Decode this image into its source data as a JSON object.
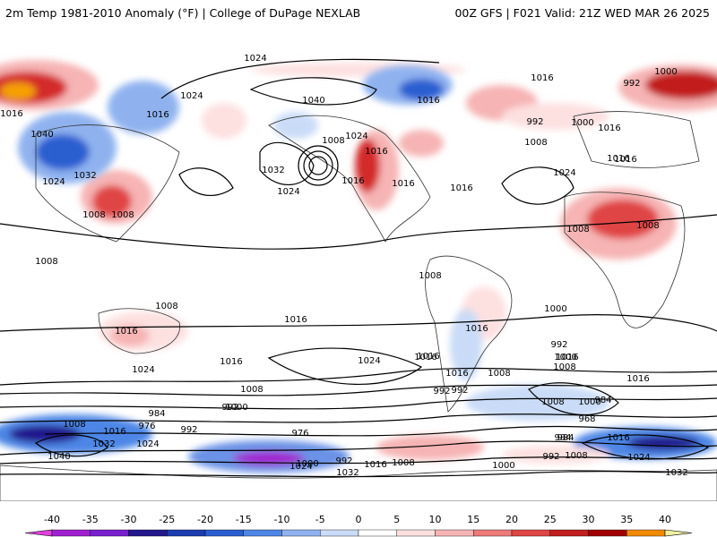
{
  "header": {
    "left_title": "2m Temp 1981-2010 Anomaly (°F) | College of DuPage NEXLAB",
    "right_title": "00Z GFS | F021 Valid: 21Z WED MAR 26 2025"
  },
  "colors": {
    "warm_light": "#f6c6c6",
    "warm_mid": "#ee7a7a",
    "warm_strong": "#d42a2a",
    "warm_extreme": "#b00000",
    "hot": "#f5a000",
    "cold_light": "#c6d8f6",
    "cold_mid": "#6b92e6",
    "cold_strong": "#2a4fc8",
    "cold_extreme": "#7a1fd0",
    "isobar": "#000000"
  },
  "map": {
    "type": "global temperature anomaly with sea-level pressure isobars",
    "pressure_labels": [
      {
        "text": "1024",
        "region": "North Pacific top"
      },
      {
        "text": "1040",
        "region": "North Pacific"
      },
      {
        "text": "1032",
        "region": "North Pacific"
      },
      {
        "text": "1024",
        "region": "North Pacific"
      },
      {
        "text": "1008",
        "region": "Gulf of Alaska low"
      },
      {
        "text": "1016",
        "region": "Gulf of Alaska"
      },
      {
        "text": "1016",
        "region": "Western US"
      },
      {
        "text": "1016",
        "region": "Central US"
      },
      {
        "text": "1016",
        "region": "Eastern US"
      },
      {
        "text": "1016",
        "region": "Canada"
      },
      {
        "text": "1024",
        "region": "Canada"
      },
      {
        "text": "1016",
        "region": "Arctic"
      },
      {
        "text": "1000",
        "region": "Arctic Europe"
      },
      {
        "text": "992",
        "region": "Arctic Europe"
      },
      {
        "text": "992",
        "region": "North Atlantic"
      },
      {
        "text": "1000",
        "region": "North Atlantic"
      },
      {
        "text": "1008",
        "region": "North Atlantic"
      },
      {
        "text": "1016",
        "region": "North Atlantic"
      },
      {
        "text": "1024",
        "region": "Azores"
      },
      {
        "text": "1016",
        "region": "Europe"
      },
      {
        "text": "1016",
        "region": "Middle East"
      },
      {
        "text": "1008",
        "region": "North Africa"
      },
      {
        "text": "1008",
        "region": "Middle East"
      },
      {
        "text": "1016",
        "region": "Siberia"
      },
      {
        "text": "1024",
        "region": "Siberia"
      },
      {
        "text": "1040",
        "region": "Central Asia"
      },
      {
        "text": "1032",
        "region": "East Asia"
      },
      {
        "text": "1024",
        "region": "East Asia"
      },
      {
        "text": "1008",
        "region": "East Asia"
      },
      {
        "text": "1008",
        "region": "China"
      },
      {
        "text": "1016",
        "region": "Central Asia"
      },
      {
        "text": "1008",
        "region": "India"
      },
      {
        "text": "1008",
        "region": "Indonesia"
      },
      {
        "text": "1016",
        "region": "Australia"
      },
      {
        "text": "1016",
        "region": "South Pacific"
      },
      {
        "text": "1024",
        "region": "South Indian Ocean"
      },
      {
        "text": "1016",
        "region": "South Pacific"
      },
      {
        "text": "1024",
        "region": "South Pacific"
      },
      {
        "text": "1016",
        "region": "South Pacific east"
      },
      {
        "text": "1016",
        "region": "South Atlantic"
      },
      {
        "text": "1016",
        "region": "South Atlantic east"
      },
      {
        "text": "1008",
        "region": "South Atlantic"
      },
      {
        "text": "1000",
        "region": "South Atlantic"
      },
      {
        "text": "992",
        "region": "South Atlantic"
      },
      {
        "text": "1016",
        "region": "South Indian Ocean"
      },
      {
        "text": "1008",
        "region": "South America"
      },
      {
        "text": "1008",
        "region": "South America"
      },
      {
        "text": "1016",
        "region": "South America"
      },
      {
        "text": "1016",
        "region": "South Indian Ocean west"
      },
      {
        "text": "1008",
        "region": "South Indian Ocean west"
      },
      {
        "text": "1000",
        "region": "Southern Ocean west"
      },
      {
        "text": "992",
        "region": "Southern Ocean west"
      },
      {
        "text": "1008",
        "region": "Southern Ocean"
      },
      {
        "text": "1000",
        "region": "Southern Ocean"
      },
      {
        "text": "992",
        "region": "Southern Ocean"
      },
      {
        "text": "992",
        "region": "Drake Passage"
      },
      {
        "text": "976",
        "region": "Southern Ocean Atlantic"
      },
      {
        "text": "968",
        "region": "Southern Ocean Atlantic"
      },
      {
        "text": "984",
        "region": "Southern Ocean"
      },
      {
        "text": "984",
        "region": "Southern Ocean"
      },
      {
        "text": "1000",
        "region": "Southern Ocean"
      },
      {
        "text": "984",
        "region": "Southern Ocean"
      },
      {
        "text": "992",
        "region": "Southern Ocean"
      },
      {
        "text": "976",
        "region": "Southern Ocean"
      },
      {
        "text": "984",
        "region": "Southern Ocean"
      },
      {
        "text": "1008",
        "region": "Antarctica west"
      },
      {
        "text": "1016",
        "region": "Antarctica"
      },
      {
        "text": "1032",
        "region": "Antarctica west"
      },
      {
        "text": "1040",
        "region": "Antarctica west"
      },
      {
        "text": "1024",
        "region": "Antarctica"
      },
      {
        "text": "1000",
        "region": "Antarctica"
      },
      {
        "text": "992",
        "region": "Antarctica"
      },
      {
        "text": "1016",
        "region": "Antarctica"
      },
      {
        "text": "1024",
        "region": "Antarctica"
      },
      {
        "text": "1032",
        "region": "Antarctica"
      },
      {
        "text": "1008",
        "region": "Antarctica"
      },
      {
        "text": "1000",
        "region": "Antarctica"
      },
      {
        "text": "992",
        "region": "Antarctica"
      },
      {
        "text": "1008",
        "region": "Antarctica east"
      },
      {
        "text": "1016",
        "region": "Antarctica east"
      },
      {
        "text": "1024",
        "region": "Antarctica east"
      },
      {
        "text": "1032",
        "region": "Antarctica east"
      }
    ]
  },
  "legend": {
    "ticks": [
      "-40",
      "-35",
      "-30",
      "-25",
      "-20",
      "-15",
      "-10",
      "-5",
      "0",
      "5",
      "10",
      "15",
      "20",
      "25",
      "30",
      "35",
      "40"
    ],
    "colors": [
      "#e040e0",
      "#a020d0",
      "#7a1fd0",
      "#24188c",
      "#1c3cb0",
      "#2a5ed0",
      "#4d86e6",
      "#8fb2ef",
      "#c9dbf7",
      "#ffffff",
      "#fde0e0",
      "#f6b4b4",
      "#ee7a7a",
      "#e04545",
      "#c21f1f",
      "#a00000",
      "#f08a00",
      "#f7c200",
      "#f0f0a0"
    ]
  }
}
